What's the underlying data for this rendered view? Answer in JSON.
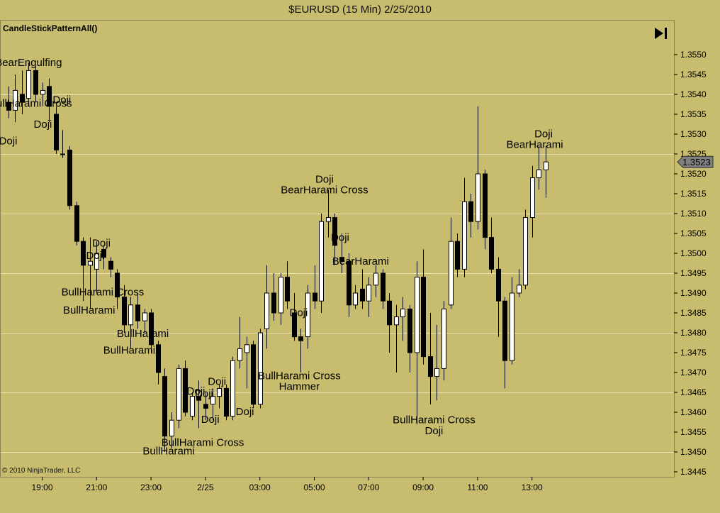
{
  "window": {
    "title": "$EURUSD (15 Min)  2/25/2010"
  },
  "indicator": {
    "name": "CandleStickPatternAll()"
  },
  "footer": {
    "copyright": "© 2010 NinjaTrader, LLC"
  },
  "controls": {
    "play_icon": "skip-to-end-icon"
  },
  "colors": {
    "background": "#c8bd6e",
    "bull_candle": "#ffffff",
    "bear_candle": "#000000",
    "gridline": "#e6e0b4",
    "price_marker": "#7f7f7f"
  },
  "chart_data": {
    "type": "candlestick",
    "title": "$EURUSD (15 Min)  2/25/2010",
    "ylim": [
      1.3445,
      1.3555
    ],
    "y_ticks": [
      "1.3445",
      "1.3450",
      "1.3455",
      "1.3460",
      "1.3465",
      "1.3470",
      "1.3475",
      "1.3480",
      "1.3485",
      "1.3490",
      "1.3495",
      "1.3500",
      "1.3505",
      "1.3510",
      "1.3515",
      "1.3520",
      "1.3525",
      "1.3530",
      "1.3535",
      "1.3540",
      "1.3545",
      "1.3550"
    ],
    "x_ticks": [
      "19:00",
      "21:00",
      "23:00",
      "2/25",
      "03:00",
      "05:00",
      "07:00",
      "09:00",
      "11:00",
      "13:00"
    ],
    "x_tick_bar_index": [
      5,
      13,
      21,
      29,
      37,
      45,
      53,
      61,
      69,
      77
    ],
    "gridlines": [
      1.345,
      1.3465,
      1.348,
      1.3495,
      1.351,
      1.3525,
      1.354
    ],
    "last_price": "1.3523",
    "candles": [
      {
        "o": 1.3538,
        "h": 1.3542,
        "l": 1.3534,
        "c": 1.3536
      },
      {
        "o": 1.3536,
        "h": 1.3545,
        "l": 1.3533,
        "c": 1.3541
      },
      {
        "o": 1.354,
        "h": 1.3546,
        "l": 1.3535,
        "c": 1.3538
      },
      {
        "o": 1.3539,
        "h": 1.3548,
        "l": 1.3537,
        "c": 1.3546
      },
      {
        "o": 1.3546,
        "h": 1.3547,
        "l": 1.3538,
        "c": 1.354
      },
      {
        "o": 1.354,
        "h": 1.3543,
        "l": 1.3537,
        "c": 1.3541
      },
      {
        "o": 1.3542,
        "h": 1.3544,
        "l": 1.3533,
        "c": 1.3537
      },
      {
        "o": 1.3535,
        "h": 1.3537,
        "l": 1.3525,
        "c": 1.3526
      },
      {
        "o": 1.3525,
        "h": 1.3531,
        "l": 1.3524,
        "c": 1.3525
      },
      {
        "o": 1.3526,
        "h": 1.3527,
        "l": 1.3511,
        "c": 1.3512
      },
      {
        "o": 1.3512,
        "h": 1.3513,
        "l": 1.3502,
        "c": 1.3503
      },
      {
        "o": 1.3503,
        "h": 1.3504,
        "l": 1.3488,
        "c": 1.3497
      },
      {
        "o": 1.3497,
        "h": 1.3504,
        "l": 1.3486,
        "c": 1.3498
      },
      {
        "o": 1.3496,
        "h": 1.3503,
        "l": 1.349,
        "c": 1.35
      },
      {
        "o": 1.3501,
        "h": 1.3502,
        "l": 1.3496,
        "c": 1.3499
      },
      {
        "o": 1.3498,
        "h": 1.3499,
        "l": 1.3494,
        "c": 1.3496
      },
      {
        "o": 1.3495,
        "h": 1.3496,
        "l": 1.3486,
        "c": 1.3489
      },
      {
        "o": 1.3489,
        "h": 1.3492,
        "l": 1.348,
        "c": 1.3482
      },
      {
        "o": 1.3482,
        "h": 1.3489,
        "l": 1.3476,
        "c": 1.3487
      },
      {
        "o": 1.3487,
        "h": 1.349,
        "l": 1.3481,
        "c": 1.3483
      },
      {
        "o": 1.3483,
        "h": 1.3486,
        "l": 1.348,
        "c": 1.3485
      },
      {
        "o": 1.3485,
        "h": 1.3486,
        "l": 1.3475,
        "c": 1.3477
      },
      {
        "o": 1.3477,
        "h": 1.3478,
        "l": 1.3467,
        "c": 1.347
      },
      {
        "o": 1.3469,
        "h": 1.3471,
        "l": 1.345,
        "c": 1.3454
      },
      {
        "o": 1.3454,
        "h": 1.346,
        "l": 1.3451,
        "c": 1.3458
      },
      {
        "o": 1.3458,
        "h": 1.3472,
        "l": 1.3456,
        "c": 1.3471
      },
      {
        "o": 1.3471,
        "h": 1.3473,
        "l": 1.3459,
        "c": 1.346
      },
      {
        "o": 1.3459,
        "h": 1.3465,
        "l": 1.3458,
        "c": 1.3464
      },
      {
        "o": 1.3464,
        "h": 1.3468,
        "l": 1.3456,
        "c": 1.3463
      },
      {
        "o": 1.3462,
        "h": 1.3465,
        "l": 1.3458,
        "c": 1.3461
      },
      {
        "o": 1.3462,
        "h": 1.3466,
        "l": 1.3458,
        "c": 1.3464
      },
      {
        "o": 1.3464,
        "h": 1.3467,
        "l": 1.3461,
        "c": 1.3466
      },
      {
        "o": 1.3466,
        "h": 1.3467,
        "l": 1.3458,
        "c": 1.3459
      },
      {
        "o": 1.3459,
        "h": 1.3474,
        "l": 1.3458,
        "c": 1.3473
      },
      {
        "o": 1.3473,
        "h": 1.3484,
        "l": 1.3471,
        "c": 1.3476
      },
      {
        "o": 1.3475,
        "h": 1.3479,
        "l": 1.3466,
        "c": 1.3477
      },
      {
        "o": 1.3477,
        "h": 1.3478,
        "l": 1.3461,
        "c": 1.3462
      },
      {
        "o": 1.3462,
        "h": 1.3481,
        "l": 1.3461,
        "c": 1.348
      },
      {
        "o": 1.3481,
        "h": 1.3497,
        "l": 1.3476,
        "c": 1.349
      },
      {
        "o": 1.349,
        "h": 1.3495,
        "l": 1.3483,
        "c": 1.3485
      },
      {
        "o": 1.3485,
        "h": 1.3495,
        "l": 1.3482,
        "c": 1.3494
      },
      {
        "o": 1.3494,
        "h": 1.3498,
        "l": 1.3486,
        "c": 1.3488
      },
      {
        "o": 1.3485,
        "h": 1.349,
        "l": 1.3478,
        "c": 1.3479
      },
      {
        "o": 1.3479,
        "h": 1.3481,
        "l": 1.347,
        "c": 1.3478
      },
      {
        "o": 1.3479,
        "h": 1.3492,
        "l": 1.3476,
        "c": 1.349
      },
      {
        "o": 1.349,
        "h": 1.3497,
        "l": 1.3486,
        "c": 1.3488
      },
      {
        "o": 1.3488,
        "h": 1.351,
        "l": 1.3485,
        "c": 1.3508
      },
      {
        "o": 1.3508,
        "h": 1.3516,
        "l": 1.3504,
        "c": 1.3509
      },
      {
        "o": 1.3509,
        "h": 1.351,
        "l": 1.3497,
        "c": 1.3502
      },
      {
        "o": 1.3499,
        "h": 1.3505,
        "l": 1.3495,
        "c": 1.3498
      },
      {
        "o": 1.3498,
        "h": 1.35,
        "l": 1.3484,
        "c": 1.3487
      },
      {
        "o": 1.3487,
        "h": 1.3492,
        "l": 1.3486,
        "c": 1.349
      },
      {
        "o": 1.3491,
        "h": 1.3496,
        "l": 1.3486,
        "c": 1.3488
      },
      {
        "o": 1.3488,
        "h": 1.3494,
        "l": 1.3484,
        "c": 1.3492
      },
      {
        "o": 1.3492,
        "h": 1.3497,
        "l": 1.3489,
        "c": 1.3495
      },
      {
        "o": 1.3495,
        "h": 1.3496,
        "l": 1.3486,
        "c": 1.3488
      },
      {
        "o": 1.3488,
        "h": 1.349,
        "l": 1.3475,
        "c": 1.3482
      },
      {
        "o": 1.3482,
        "h": 1.3487,
        "l": 1.347,
        "c": 1.3484
      },
      {
        "o": 1.3484,
        "h": 1.3489,
        "l": 1.3478,
        "c": 1.3486
      },
      {
        "o": 1.3486,
        "h": 1.3487,
        "l": 1.347,
        "c": 1.3475
      },
      {
        "o": 1.3475,
        "h": 1.3498,
        "l": 1.3457,
        "c": 1.3494
      },
      {
        "o": 1.3494,
        "h": 1.3501,
        "l": 1.3472,
        "c": 1.3474
      },
      {
        "o": 1.3474,
        "h": 1.3485,
        "l": 1.3462,
        "c": 1.3469
      },
      {
        "o": 1.3469,
        "h": 1.3482,
        "l": 1.3463,
        "c": 1.3471
      },
      {
        "o": 1.3471,
        "h": 1.3488,
        "l": 1.3468,
        "c": 1.3486
      },
      {
        "o": 1.3487,
        "h": 1.3509,
        "l": 1.3486,
        "c": 1.3503
      },
      {
        "o": 1.3503,
        "h": 1.3505,
        "l": 1.3494,
        "c": 1.3496
      },
      {
        "o": 1.3496,
        "h": 1.3519,
        "l": 1.3494,
        "c": 1.3513
      },
      {
        "o": 1.3513,
        "h": 1.3515,
        "l": 1.3504,
        "c": 1.3508
      },
      {
        "o": 1.3508,
        "h": 1.3537,
        "l": 1.3506,
        "c": 1.352
      },
      {
        "o": 1.352,
        "h": 1.3521,
        "l": 1.3501,
        "c": 1.3504
      },
      {
        "o": 1.3504,
        "h": 1.3509,
        "l": 1.3495,
        "c": 1.3496
      },
      {
        "o": 1.3496,
        "h": 1.3499,
        "l": 1.3479,
        "c": 1.3488
      },
      {
        "o": 1.3488,
        "h": 1.3489,
        "l": 1.3466,
        "c": 1.3473
      },
      {
        "o": 1.3473,
        "h": 1.3494,
        "l": 1.3472,
        "c": 1.349
      },
      {
        "o": 1.349,
        "h": 1.3496,
        "l": 1.3489,
        "c": 1.3492
      },
      {
        "o": 1.3492,
        "h": 1.3511,
        "l": 1.3491,
        "c": 1.3509
      },
      {
        "o": 1.3509,
        "h": 1.3522,
        "l": 1.3504,
        "c": 1.3519
      },
      {
        "o": 1.3519,
        "h": 1.3527,
        "l": 1.3516,
        "c": 1.3521
      },
      {
        "o": 1.3521,
        "h": 1.3527,
        "l": 1.3514,
        "c": 1.3523
      }
    ],
    "annotations": [
      {
        "text": "BearEngulfing",
        "bar": 3,
        "price": 1.35471
      },
      {
        "text": "BullHarami Cross",
        "bar": 3.3,
        "price": 1.35369
      },
      {
        "text": "Doji",
        "bar": 7.9,
        "price": 1.35378
      },
      {
        "text": "Doji",
        "bar": 5.1,
        "price": 1.35316
      },
      {
        "text": "Doji",
        "bar": 0,
        "price": 1.35274
      },
      {
        "text": "Doji",
        "bar": 13.7,
        "price": 1.35017
      },
      {
        "text": "Doji",
        "bar": 12.8,
        "price": 1.34986
      },
      {
        "text": "BullHarami Cross",
        "bar": 13.9,
        "price": 1.34894
      },
      {
        "text": "BullHarami",
        "bar": 11.9,
        "price": 1.34848
      },
      {
        "text": "BullHarami",
        "bar": 19.8,
        "price": 1.34789
      },
      {
        "text": "BullHarami",
        "bar": 17.8,
        "price": 1.34747
      },
      {
        "text": "Doji",
        "bar": 46.5,
        "price": 1.35178
      },
      {
        "text": "BearHarami Cross",
        "bar": 46.5,
        "price": 1.35151
      },
      {
        "text": "Doji",
        "bar": 48.8,
        "price": 1.35031
      },
      {
        "text": "BearHarami",
        "bar": 51.8,
        "price": 1.34971
      },
      {
        "text": "Doji",
        "bar": 42.7,
        "price": 1.34842
      },
      {
        "text": "BullHarami Cross",
        "bar": 42.8,
        "price": 1.34683
      },
      {
        "text": "Hammer",
        "bar": 42.8,
        "price": 1.34656
      },
      {
        "text": "Doji",
        "bar": 30.7,
        "price": 1.34669
      },
      {
        "text": "Doji",
        "bar": 27.6,
        "price": 1.34645
      },
      {
        "text": "Doji",
        "bar": 28.8,
        "price": 1.34638
      },
      {
        "text": "Doji",
        "bar": 34.8,
        "price": 1.34593
      },
      {
        "text": "Doji",
        "bar": 29.7,
        "price": 1.34573
      },
      {
        "text": "BullHarami Cross",
        "bar": 28.6,
        "price": 1.34515
      },
      {
        "text": "BullHarami",
        "bar": 23.6,
        "price": 1.34494
      },
      {
        "text": "BullHarami Cross",
        "bar": 62.6,
        "price": 1.34572
      },
      {
        "text": "Doji",
        "bar": 62.6,
        "price": 1.34545
      },
      {
        "text": "Doji",
        "bar": 78.7,
        "price": 1.35292
      },
      {
        "text": "BearHarami",
        "bar": 77.4,
        "price": 1.35265
      }
    ]
  }
}
